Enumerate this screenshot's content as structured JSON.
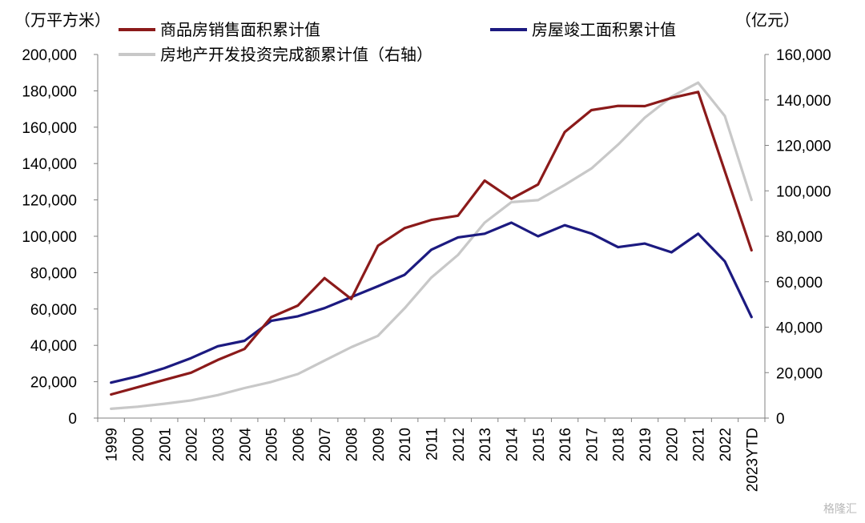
{
  "watermark": "格隆汇",
  "chart_data": {
    "type": "line",
    "left_unit": "（万平方米）",
    "right_unit": "（亿元）",
    "categories": [
      "1999",
      "2000",
      "2001",
      "2002",
      "2003",
      "2004",
      "2005",
      "2006",
      "2007",
      "2008",
      "2009",
      "2010",
      "2011",
      "2012",
      "2013",
      "2014",
      "2015",
      "2016",
      "2017",
      "2018",
      "2019",
      "2020",
      "2021",
      "2022",
      "2023YTD"
    ],
    "left_axis": {
      "min": 0,
      "max": 200000,
      "ticks": [
        "0",
        "20,000",
        "40,000",
        "60,000",
        "80,000",
        "100,000",
        "120,000",
        "140,000",
        "160,000",
        "180,000",
        "200,000"
      ]
    },
    "right_axis": {
      "min": 0,
      "max": 160000,
      "ticks": [
        "0",
        "20,000",
        "40,000",
        "60,000",
        "80,000",
        "100,000",
        "120,000",
        "140,000",
        "160,000"
      ]
    },
    "legend": [
      "商品房销售面积累计值",
      "房屋竣工面积累计值",
      "房地产开发投资完成额累计值（右轴）"
    ],
    "series": [
      {
        "name": "商品房销售面积累计值",
        "axis": "left",
        "color": "#8b1a1a",
        "values": [
          13000,
          17000,
          21000,
          25000,
          32000,
          38000,
          55500,
          61900,
          77000,
          65500,
          94800,
          104500,
          109000,
          111300,
          130600,
          120600,
          128500,
          157300,
          169400,
          171700,
          171600,
          176100,
          179400,
          135800,
          92300
        ]
      },
      {
        "name": "房屋竣工面积累计值",
        "axis": "left",
        "color": "#1c1a80",
        "values": [
          19500,
          23000,
          27500,
          33000,
          39500,
          42500,
          53500,
          56000,
          60500,
          66500,
          72500,
          78800,
          92600,
          99400,
          101400,
          107500,
          100000,
          106100,
          101500,
          94000,
          96000,
          91200,
          101400,
          86200,
          55600
        ]
      },
      {
        "name": "房地产开发投资完成额累计值（右轴）",
        "axis": "right",
        "color": "#c8c8c8",
        "values": [
          4100,
          5000,
          6300,
          7800,
          10100,
          13200,
          15900,
          19400,
          25300,
          31200,
          36200,
          48300,
          61800,
          71800,
          86000,
          95000,
          95900,
          102600,
          109800,
          120300,
          132200,
          141400,
          147600,
          132900,
          96000
        ]
      }
    ]
  }
}
